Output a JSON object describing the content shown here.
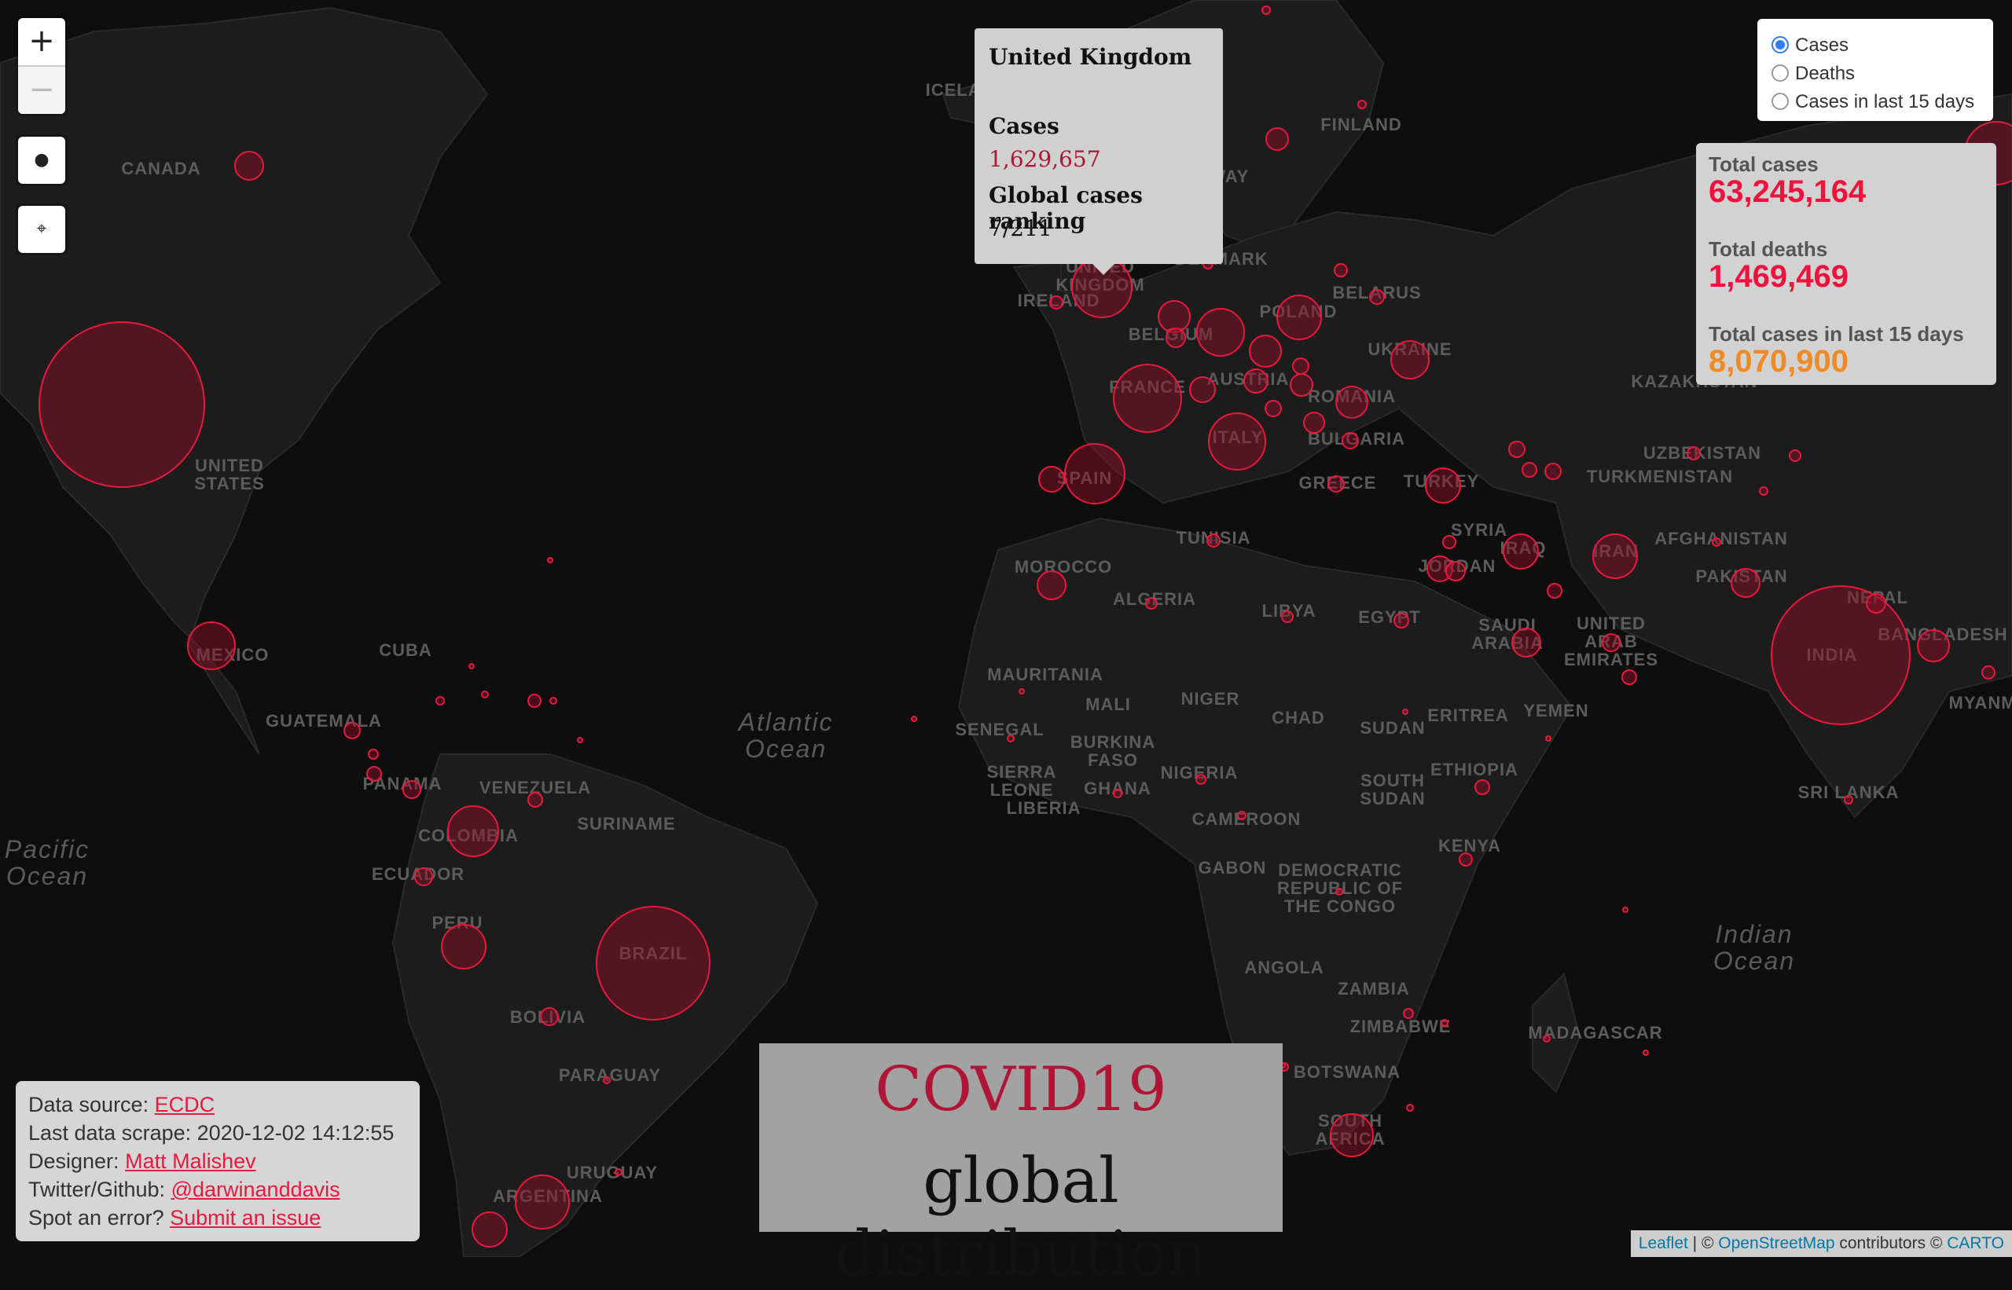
{
  "map_labels": {
    "countries": [
      {
        "name": "CANADA"
      },
      {
        "name": "UNITED"
      },
      {
        "name": "STATES"
      },
      {
        "name": "MEXICO"
      },
      {
        "name": "CUBA"
      },
      {
        "name": "GUATEMALA"
      },
      {
        "name": "PANAMA"
      },
      {
        "name": "VENEZUELA"
      },
      {
        "name": "COLOMBIA"
      },
      {
        "name": "SURINAME"
      },
      {
        "name": "ECUADOR"
      },
      {
        "name": "PERU"
      },
      {
        "name": "BRAZIL"
      },
      {
        "name": "BOLIVIA"
      },
      {
        "name": "PARAGUAY"
      },
      {
        "name": "URUGUAY"
      },
      {
        "name": "ARGENTINA"
      },
      {
        "name": "ICELAND"
      },
      {
        "name": "NORWAY"
      },
      {
        "name": "FINLAND"
      },
      {
        "name": "UNITED"
      },
      {
        "name": "KINGDOM"
      },
      {
        "name": "IRELAND"
      },
      {
        "name": "DENMARK"
      },
      {
        "name": "BELARUS"
      },
      {
        "name": "POLAND"
      },
      {
        "name": "BELGIUM"
      },
      {
        "name": "UKRAINE"
      },
      {
        "name": "FRANCE"
      },
      {
        "name": "AUSTRIA"
      },
      {
        "name": "ROMANIA"
      },
      {
        "name": "ITALY"
      },
      {
        "name": "BULGARIA"
      },
      {
        "name": "SPAIN"
      },
      {
        "name": "GREECE"
      },
      {
        "name": "TURKEY"
      },
      {
        "name": "KAZAKHSTAN"
      },
      {
        "name": "UZBEKISTAN"
      },
      {
        "name": "TURKMENISTAN"
      },
      {
        "name": "TUNISIA"
      },
      {
        "name": "MOROCCO"
      },
      {
        "name": "ALGERIA"
      },
      {
        "name": "LIBYA"
      },
      {
        "name": "EGYPT"
      },
      {
        "name": "SYRIA"
      },
      {
        "name": "JORDAN"
      },
      {
        "name": "IRAQ"
      },
      {
        "name": "IRAN"
      },
      {
        "name": "AFGHANISTAN"
      },
      {
        "name": "PAKISTAN"
      },
      {
        "name": "SAUDI"
      },
      {
        "name": "ARABIA"
      },
      {
        "name": "UNITED"
      },
      {
        "name": "ARAB"
      },
      {
        "name": "EMIRATES"
      },
      {
        "name": "NEPAL"
      },
      {
        "name": "INDIA"
      },
      {
        "name": "BANGLADESH"
      },
      {
        "name": "MYANMA"
      },
      {
        "name": "YEMEN"
      },
      {
        "name": "ERITREA"
      },
      {
        "name": "SUDAN"
      },
      {
        "name": "CHAD"
      },
      {
        "name": "NIGER"
      },
      {
        "name": "MALI"
      },
      {
        "name": "MAURITANIA"
      },
      {
        "name": "SENEGAL"
      },
      {
        "name": "BURKINA"
      },
      {
        "name": "FASO"
      },
      {
        "name": "SIERRA"
      },
      {
        "name": "LEONE"
      },
      {
        "name": "LIBERIA"
      },
      {
        "name": "GHANA"
      },
      {
        "name": "NIGERIA"
      },
      {
        "name": "CAMEROON"
      },
      {
        "name": "ETHIOPIA"
      },
      {
        "name": "SOUTH"
      },
      {
        "name": "SUDAN"
      },
      {
        "name": "KENYA"
      },
      {
        "name": "GABON"
      },
      {
        "name": "DEMOCRATIC"
      },
      {
        "name": "REPUBLIC OF"
      },
      {
        "name": "THE CONGO"
      },
      {
        "name": "ANGOLA"
      },
      {
        "name": "ZAMBIA"
      },
      {
        "name": "ZIMBABWE"
      },
      {
        "name": "BOTSWANA"
      },
      {
        "name": "SOUTH"
      },
      {
        "name": "AFRICA"
      },
      {
        "name": "MADAGASCAR"
      },
      {
        "name": "SRI LANKA"
      }
    ],
    "oceans": [
      {
        "lines": [
          "Atlantic",
          "Ocean"
        ]
      },
      {
        "lines": [
          "Pacific",
          "Ocean"
        ]
      },
      {
        "lines": [
          "Indian",
          "Ocean"
        ]
      }
    ]
  },
  "zoom": {
    "in": "+",
    "out": "−"
  },
  "tooltip": {
    "country": "United Kingdom",
    "cases_label": "Cases",
    "cases_value": "1,629,657",
    "ranking_label": "Global cases ranking",
    "ranking_value": "7/211"
  },
  "layers": {
    "options": [
      {
        "label": "Cases",
        "selected": true
      },
      {
        "label": "Deaths",
        "selected": false
      },
      {
        "label": "Cases in last 15 days",
        "selected": false
      }
    ]
  },
  "totals": {
    "cases_label": "Total cases",
    "cases_value": "63,245,164",
    "deaths_label": "Total deaths",
    "deaths_value": "1,469,469",
    "last15_label": "Total cases in last 15 days",
    "last15_value": "8,070,900",
    "colors": {
      "cases": "#f0123c",
      "deaths": "#f0123c",
      "last15": "#f08a24"
    }
  },
  "info": {
    "source_label": "Data source:",
    "source_link": "ECDC",
    "scrape_label": "Last data scrape:",
    "scrape_value": "2020-12-02 14:12:55",
    "designer_label": "Designer:",
    "designer_link": "Matt Malishev ",
    "social_label": "Twitter/Github:",
    "social_link": "@darwinanddavis ",
    "error_label": "Spot an error?",
    "error_link": "Submit an issue"
  },
  "title": {
    "line1": "COVID19",
    "line2": "global distribution"
  },
  "attribution": {
    "leaflet": "Leaflet",
    "sep": " | © ",
    "osm": "OpenStreetMap",
    "contributors": " contributors © ",
    "carto": "CARTO"
  },
  "colors": {
    "accent": "#e8193c",
    "bubble_fill": "rgba(150,14,40,0.45)",
    "land": "#1c1c1c",
    "water": "#0e0e0e"
  }
}
